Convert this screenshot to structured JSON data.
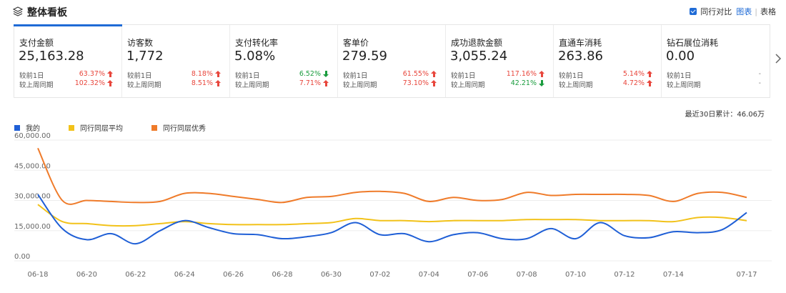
{
  "header": {
    "title": "整体看板",
    "compare_label": "同行对比",
    "view_chart": "图表",
    "view_table": "表格"
  },
  "cards": [
    {
      "name": "支付金额",
      "value": "25,163.28",
      "d1_label": "较前1日",
      "d1": "63.37%",
      "d1_dir": "up",
      "w_label": "较上周同期",
      "w": "102.32%",
      "w_dir": "up",
      "active": true
    },
    {
      "name": "访客数",
      "value": "1,772",
      "d1_label": "较前1日",
      "d1": "8.18%",
      "d1_dir": "up",
      "w_label": "较上周同期",
      "w": "8.51%",
      "w_dir": "up"
    },
    {
      "name": "支付转化率",
      "value": "5.08%",
      "d1_label": "较前1日",
      "d1": "6.52%",
      "d1_dir": "down",
      "w_label": "较上周同期",
      "w": "7.71%",
      "w_dir": "up"
    },
    {
      "name": "客单价",
      "value": "279.59",
      "d1_label": "较前1日",
      "d1": "61.55%",
      "d1_dir": "up",
      "w_label": "较上周同期",
      "w": "73.10%",
      "w_dir": "up"
    },
    {
      "name": "成功退款金额",
      "value": "3,055.24",
      "d1_label": "较前1日",
      "d1": "117.16%",
      "d1_dir": "up",
      "w_label": "较上周同期",
      "w": "42.21%",
      "w_dir": "down"
    },
    {
      "name": "直通车消耗",
      "value": "263.86",
      "d1_label": "较前1日",
      "d1": "5.14%",
      "d1_dir": "up",
      "w_label": "较上周同期",
      "w": "4.72%",
      "w_dir": "up"
    },
    {
      "name": "钻石展位消耗",
      "value": "0.00",
      "d1_label": "较前1日",
      "d1": "-",
      "d1_dir": "none",
      "w_label": "较上周同期",
      "w": "-",
      "w_dir": "none"
    }
  ],
  "cumulative_label": "最近30日累计：46.06万",
  "colors": {
    "mine": "#1f5fd6",
    "avg": "#f2c21a",
    "top": "#ef7b2a",
    "up": "#e8463c",
    "down": "#1a9c3e",
    "accent": "#1f6bd6"
  },
  "chart_data": {
    "type": "line",
    "ylim": [
      0,
      60000
    ],
    "yticks": [
      "60,000.00",
      "45,000.00",
      "30,000.00",
      "15,000.00",
      "0.00"
    ],
    "ytick_values": [
      60000,
      45000,
      30000,
      15000,
      0
    ],
    "xtick_labels": [
      "06-18",
      "06-20",
      "06-22",
      "06-24",
      "06-26",
      "06-28",
      "06-30",
      "07-02",
      "07-04",
      "07-06",
      "07-08",
      "07-10",
      "07-12",
      "07-14",
      "07-17"
    ],
    "x": [
      "06-18",
      "06-19",
      "06-20",
      "06-21",
      "06-22",
      "06-23",
      "06-24",
      "06-25",
      "06-26",
      "06-27",
      "06-28",
      "06-29",
      "06-30",
      "07-01",
      "07-02",
      "07-03",
      "07-04",
      "07-05",
      "07-06",
      "07-07",
      "07-08",
      "07-09",
      "07-10",
      "07-11",
      "07-12",
      "07-13",
      "07-14",
      "07-15",
      "07-16",
      "07-17"
    ],
    "grid": true,
    "legend_position": "top-left",
    "series": [
      {
        "name": "我的",
        "color_key": "mine",
        "values": [
          33000,
          16000,
          10500,
          13500,
          8500,
          15000,
          20000,
          16500,
          13500,
          13000,
          11000,
          12000,
          14000,
          19000,
          13000,
          13500,
          9500,
          13000,
          14000,
          11000,
          11000,
          16000,
          11000,
          19000,
          12500,
          11500,
          14500,
          14000,
          15500,
          24000
        ]
      },
      {
        "name": "同行同层平均",
        "color_key": "avg",
        "values": [
          28000,
          19500,
          18500,
          17500,
          17500,
          18500,
          19500,
          18500,
          18000,
          18000,
          18000,
          18500,
          19000,
          21000,
          20000,
          20000,
          19500,
          20000,
          20000,
          20000,
          20500,
          20500,
          20500,
          20000,
          20000,
          20000,
          19500,
          21500,
          21500,
          20000
        ]
      },
      {
        "name": "同行同层优秀",
        "color_key": "top",
        "values": [
          56000,
          30000,
          30000,
          29500,
          29000,
          29500,
          33500,
          33500,
          32000,
          30500,
          29000,
          31500,
          32000,
          34000,
          34500,
          33500,
          29500,
          31500,
          30000,
          30500,
          34000,
          32500,
          33000,
          33000,
          33000,
          32500,
          29500,
          33500,
          34000,
          31500
        ]
      }
    ]
  }
}
